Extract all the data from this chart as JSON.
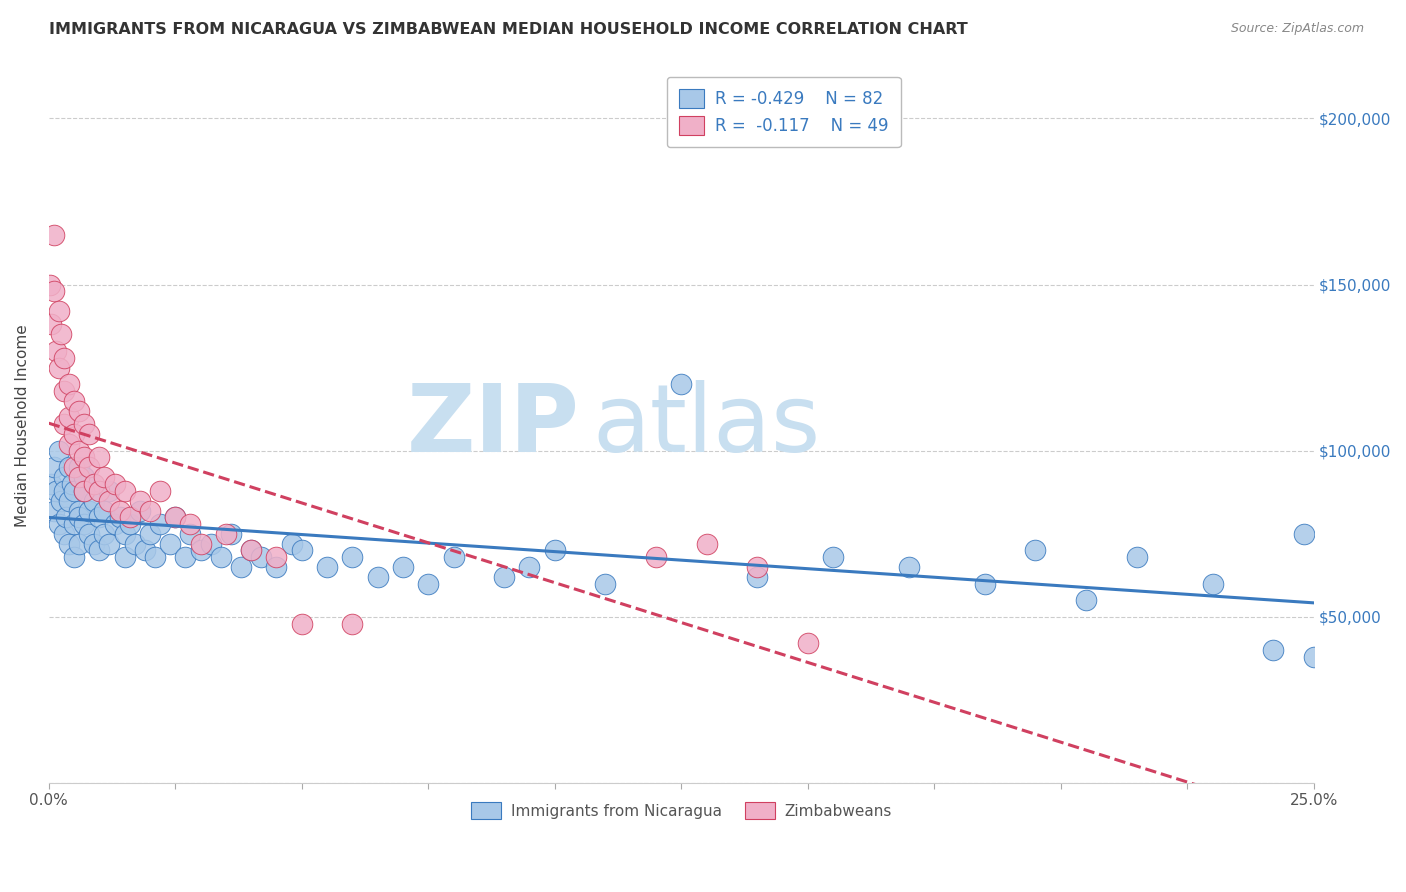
{
  "title": "IMMIGRANTS FROM NICARAGUA VS ZIMBABWEAN MEDIAN HOUSEHOLD INCOME CORRELATION CHART",
  "source": "Source: ZipAtlas.com",
  "ylabel": "Median Household Income",
  "yticks": [
    0,
    50000,
    100000,
    150000,
    200000
  ],
  "ytick_labels": [
    "",
    "$50,000",
    "$100,000",
    "$150,000",
    "$200,000"
  ],
  "xmin": 0.0,
  "xmax": 0.25,
  "ymin": 0,
  "ymax": 215000,
  "R_nicaragua": -0.429,
  "N_nicaragua": 82,
  "R_zimbabwe": -0.117,
  "N_zimbabwe": 49,
  "color_nicaragua": "#a8c8e8",
  "color_zimbabwe": "#f0b0c8",
  "color_line_nicaragua": "#3a7abf",
  "color_line_zimbabwe": "#d04060",
  "watermark_zip": "ZIP",
  "watermark_atlas": "atlas",
  "watermark_color": "#c8dff0",
  "nicaragua_x": [
    0.0005,
    0.001,
    0.001,
    0.0015,
    0.002,
    0.002,
    0.0025,
    0.003,
    0.003,
    0.003,
    0.0035,
    0.004,
    0.004,
    0.004,
    0.0045,
    0.005,
    0.005,
    0.005,
    0.006,
    0.006,
    0.006,
    0.006,
    0.007,
    0.007,
    0.007,
    0.008,
    0.008,
    0.009,
    0.009,
    0.01,
    0.01,
    0.011,
    0.011,
    0.012,
    0.012,
    0.013,
    0.014,
    0.015,
    0.015,
    0.016,
    0.017,
    0.018,
    0.019,
    0.02,
    0.021,
    0.022,
    0.024,
    0.025,
    0.027,
    0.028,
    0.03,
    0.032,
    0.034,
    0.036,
    0.038,
    0.04,
    0.042,
    0.045,
    0.048,
    0.05,
    0.055,
    0.06,
    0.065,
    0.07,
    0.075,
    0.08,
    0.09,
    0.095,
    0.1,
    0.11,
    0.125,
    0.14,
    0.155,
    0.17,
    0.185,
    0.195,
    0.205,
    0.215,
    0.23,
    0.242,
    0.248,
    0.25
  ],
  "nicaragua_y": [
    90000,
    95000,
    82000,
    88000,
    100000,
    78000,
    85000,
    92000,
    75000,
    88000,
    80000,
    95000,
    72000,
    85000,
    90000,
    78000,
    68000,
    88000,
    82000,
    95000,
    72000,
    80000,
    78000,
    88000,
    92000,
    75000,
    82000,
    72000,
    85000,
    80000,
    70000,
    75000,
    82000,
    72000,
    88000,
    78000,
    80000,
    75000,
    68000,
    78000,
    72000,
    82000,
    70000,
    75000,
    68000,
    78000,
    72000,
    80000,
    68000,
    75000,
    70000,
    72000,
    68000,
    75000,
    65000,
    70000,
    68000,
    65000,
    72000,
    70000,
    65000,
    68000,
    62000,
    65000,
    60000,
    68000,
    62000,
    65000,
    70000,
    60000,
    120000,
    62000,
    68000,
    65000,
    60000,
    70000,
    55000,
    68000,
    60000,
    40000,
    75000,
    38000
  ],
  "zimbabwe_x": [
    0.0003,
    0.0005,
    0.001,
    0.001,
    0.0015,
    0.002,
    0.002,
    0.0025,
    0.003,
    0.003,
    0.003,
    0.004,
    0.004,
    0.004,
    0.005,
    0.005,
    0.005,
    0.006,
    0.006,
    0.006,
    0.007,
    0.007,
    0.007,
    0.008,
    0.008,
    0.009,
    0.01,
    0.01,
    0.011,
    0.012,
    0.013,
    0.014,
    0.015,
    0.016,
    0.018,
    0.02,
    0.022,
    0.025,
    0.028,
    0.03,
    0.035,
    0.04,
    0.045,
    0.05,
    0.06,
    0.12,
    0.13,
    0.14,
    0.15
  ],
  "zimbabwe_y": [
    150000,
    138000,
    165000,
    148000,
    130000,
    142000,
    125000,
    135000,
    118000,
    128000,
    108000,
    120000,
    110000,
    102000,
    115000,
    105000,
    95000,
    112000,
    100000,
    92000,
    108000,
    98000,
    88000,
    95000,
    105000,
    90000,
    98000,
    88000,
    92000,
    85000,
    90000,
    82000,
    88000,
    80000,
    85000,
    82000,
    88000,
    80000,
    78000,
    72000,
    75000,
    70000,
    68000,
    48000,
    48000,
    68000,
    72000,
    65000,
    42000
  ],
  "legend_top_labels": [
    "R = -0.429    N = 82",
    "R =  -0.117    N = 49"
  ],
  "legend_bottom_labels": [
    "Immigrants from Nicaragua",
    "Zimbabweans"
  ]
}
